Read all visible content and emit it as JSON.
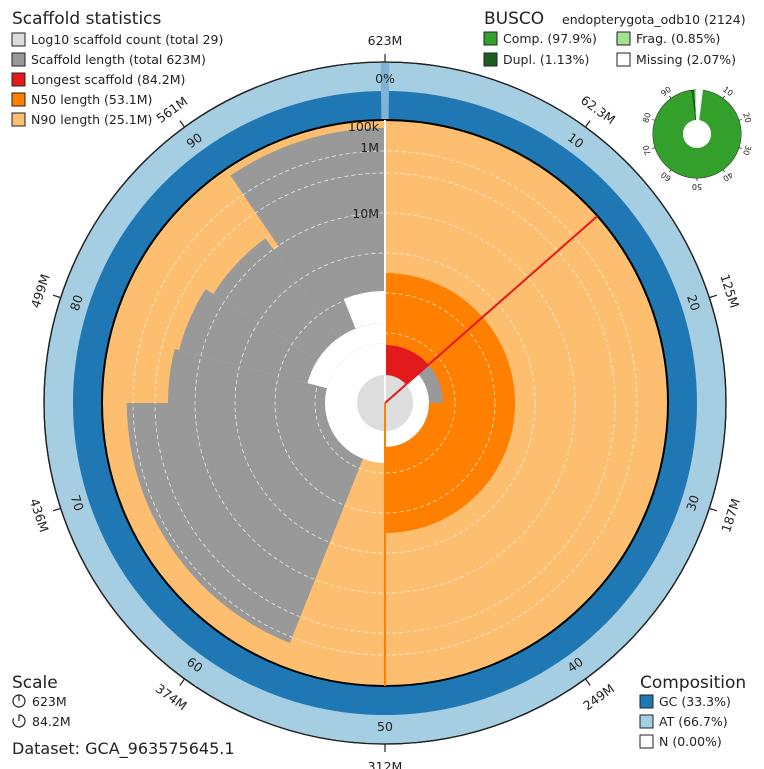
{
  "chart_data": {
    "type": "snail",
    "legend": {
      "title": "Scaffold statistics",
      "items": [
        {
          "label": "Log10 scaffold count (total 29)",
          "color": "#dddddd"
        },
        {
          "label": "Scaffold length (total 623M)",
          "color": "#999999"
        },
        {
          "label": "Longest scaffold (84.2M)",
          "color": "#e31a1c"
        },
        {
          "label": "N50 length (53.1M)",
          "color": "#ff7f00"
        },
        {
          "label": "N90 length (25.1M)",
          "color": "#fdbf6f"
        }
      ]
    },
    "busco": {
      "title": "BUSCO",
      "lineage": "endopterygota_odb10 (2124)",
      "items": [
        {
          "label": "Comp. (97.9%)",
          "color": "#33a02c",
          "value": 97.9
        },
        {
          "label": "Frag. (0.85%)",
          "color": "#a3e194",
          "value": 0.85
        },
        {
          "label": "Dupl. (1.13%)",
          "color": "#1b5e20",
          "value": 1.13
        },
        {
          "label": "Missing (2.07%)",
          "color": "#ffffff",
          "value": 2.07
        }
      ],
      "ticks": [
        "10",
        "20",
        "30",
        "40",
        "50",
        "60",
        "70",
        "80",
        "90"
      ]
    },
    "scale": {
      "title": "Scale",
      "items": [
        "623M",
        "84.2M"
      ]
    },
    "dataset": "Dataset: GCA_963575645.1",
    "composition": {
      "title": "Composition",
      "items": [
        {
          "label": "GC (33.3%)",
          "color": "#1f78b4",
          "value": 33.3
        },
        {
          "label": "AT (66.7%)",
          "color": "#a6cee3",
          "value": 66.7
        },
        {
          "label": "N (0.00%)",
          "color": "#ffffff",
          "value": 0.0
        }
      ]
    },
    "outer_ticks": [
      "623M",
      "62.3M",
      "125M",
      "187M",
      "249M",
      "312M",
      "374M",
      "436M",
      "499M",
      "561M"
    ],
    "percent_ticks": [
      "0%",
      "10",
      "20",
      "30",
      "40",
      "50",
      "60",
      "70",
      "80",
      "90"
    ],
    "radial_labels": [
      "100k",
      "1M",
      "10M"
    ],
    "stats": {
      "total_length": 623,
      "longest": 84.2,
      "n50": 53.1,
      "n90": 25.1,
      "scaffold_count": 29
    }
  }
}
